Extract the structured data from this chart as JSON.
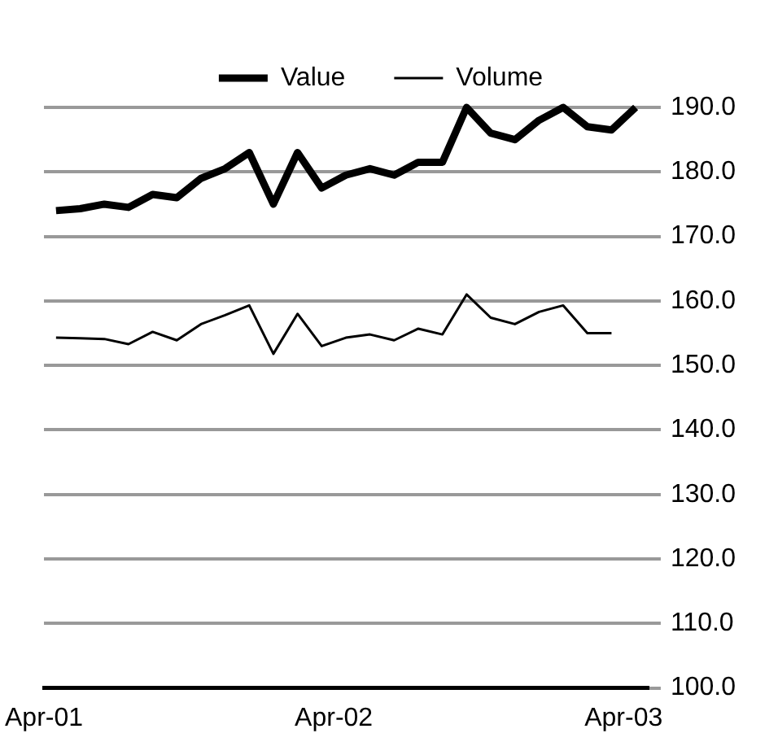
{
  "chart_data": {
    "type": "line",
    "x": [
      "--04-01T01:00",
      "--04-01T03:00",
      "--04-01T05:00",
      "--04-01T07:00",
      "--04-01T09:00",
      "--04-01T11:00",
      "--04-01T13:00",
      "--04-01T15:00",
      "--04-01T17:00",
      "--04-01T19:00",
      "--04-01T21:00",
      "--04-01T23:00",
      "--04-02T01:00",
      "--04-02T03:00",
      "--04-02T05:00",
      "--04-02T07:00",
      "--04-02T09:00",
      "--04-02T11:00",
      "--04-02T13:00",
      "--04-02T15:00",
      "--04-02T17:00",
      "--04-02T19:00",
      "--04-02T21:00",
      "--04-02T23:00",
      "--04-03T01:00"
    ],
    "series": [
      {
        "name": "Value",
        "color": "#000000",
        "values": [
          174,
          174.3,
          175,
          174.5,
          176.5,
          176,
          179,
          180.5,
          183,
          175,
          183,
          177.5,
          179.5,
          180.5,
          179.5,
          181.5,
          181.5,
          190,
          186,
          185,
          188,
          190,
          187,
          186.5,
          190
        ]
      },
      {
        "name": "Volume",
        "color": "#000000",
        "values": [
          154.3,
          154.2,
          154.1,
          153.3,
          155.2,
          153.9,
          156.4,
          157.8,
          159.3,
          151.8,
          158.0,
          153.0,
          154.3,
          154.8,
          153.9,
          155.7,
          154.8,
          161.0,
          157.4,
          156.4,
          158.3,
          159.3,
          155.0,
          155.0,
          null
        ]
      }
    ],
    "xlim": [
      "--04-01T00:00",
      "--04-03T02:00"
    ],
    "xticks": [
      {
        "value": "--04-01",
        "label": "Apr-01"
      },
      {
        "value": "--04-02",
        "label": "Apr-02"
      },
      {
        "value": "--04-03",
        "label": "Apr-03"
      }
    ],
    "ylim": [
      100,
      190
    ],
    "yticks": [
      {
        "value": 100,
        "label": "100.0"
      },
      {
        "value": 110,
        "label": "110.0"
      },
      {
        "value": 120,
        "label": "120.0"
      },
      {
        "value": 130,
        "label": "130.0"
      },
      {
        "value": 140,
        "label": "140.0"
      },
      {
        "value": 150,
        "label": "150.0"
      },
      {
        "value": 160,
        "label": "160.0"
      },
      {
        "value": 170,
        "label": "170.0"
      },
      {
        "value": 180,
        "label": "180.0"
      },
      {
        "value": 190,
        "label": "190.0"
      }
    ],
    "grid": "y",
    "legend": "top",
    "marker": "none"
  }
}
